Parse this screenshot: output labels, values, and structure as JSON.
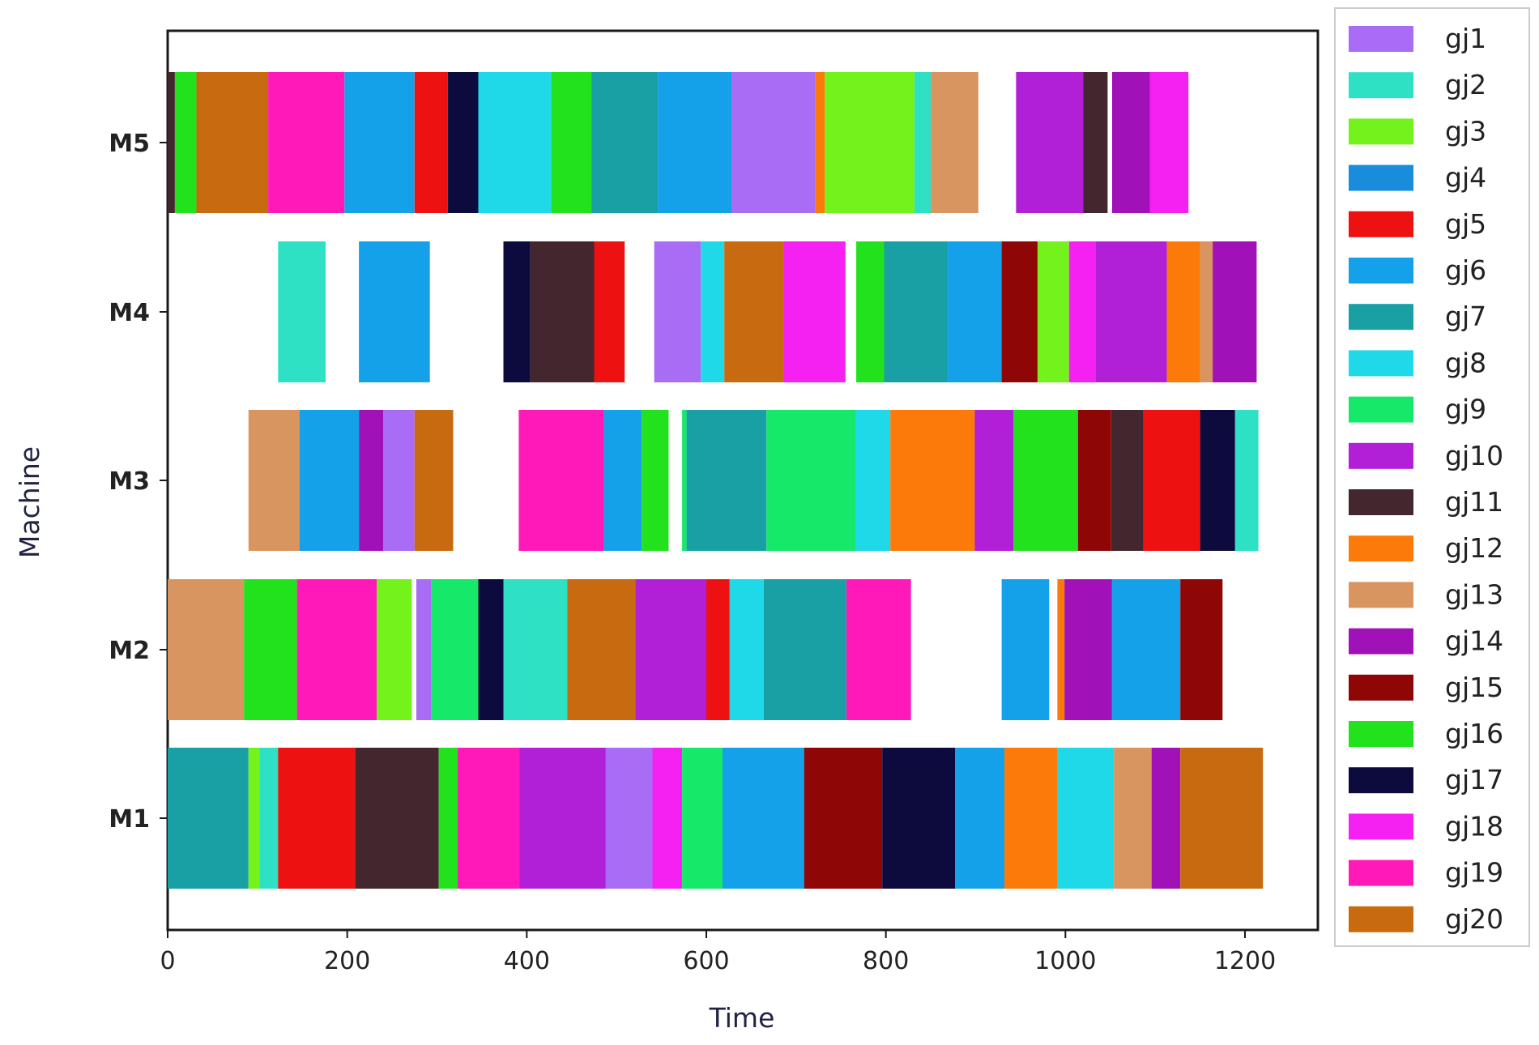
{
  "chart_data": {
    "type": "gantt",
    "xlabel": "Time",
    "ylabel": "Machine",
    "xlim": [
      0,
      1280
    ],
    "xticks": [
      0,
      200,
      400,
      600,
      800,
      1000,
      1200
    ],
    "machines": [
      "M1",
      "M2",
      "M3",
      "M4",
      "M5"
    ],
    "legend_position": "right",
    "jobs": [
      {
        "name": "gj1",
        "color": "#a96cf5"
      },
      {
        "name": "gj2",
        "color": "#2ee0c4"
      },
      {
        "name": "gj3",
        "color": "#73f21c"
      },
      {
        "name": "gj4",
        "color": "#1a8cdc"
      },
      {
        "name": "gj5",
        "color": "#ee1111"
      },
      {
        "name": "gj6",
        "color": "#15a1ea"
      },
      {
        "name": "gj7",
        "color": "#18a0a4"
      },
      {
        "name": "gj8",
        "color": "#1fd8e8"
      },
      {
        "name": "gj9",
        "color": "#16e86a"
      },
      {
        "name": "gj10",
        "color": "#b11fd6"
      },
      {
        "name": "gj11",
        "color": "#44262e"
      },
      {
        "name": "gj12",
        "color": "#fb7a0a"
      },
      {
        "name": "gj13",
        "color": "#d99560"
      },
      {
        "name": "gj14",
        "color": "#a012b8"
      },
      {
        "name": "gj15",
        "color": "#8e0606"
      },
      {
        "name": "gj16",
        "color": "#22e21e"
      },
      {
        "name": "gj17",
        "color": "#0d0a3e"
      },
      {
        "name": "gj18",
        "color": "#f520f2"
      },
      {
        "name": "gj19",
        "color": "#ff19b9"
      },
      {
        "name": "gj20",
        "color": "#c86a10"
      }
    ],
    "tasks": {
      "M5": [
        {
          "job": "gj11",
          "start": 0,
          "end": 8
        },
        {
          "job": "gj16",
          "start": 8,
          "end": 32
        },
        {
          "job": "gj20",
          "start": 32,
          "end": 112
        },
        {
          "job": "gj19",
          "start": 112,
          "end": 197
        },
        {
          "job": "gj6",
          "start": 197,
          "end": 275
        },
        {
          "job": "gj5",
          "start": 275,
          "end": 312
        },
        {
          "job": "gj17",
          "start": 312,
          "end": 346
        },
        {
          "job": "gj8",
          "start": 346,
          "end": 427
        },
        {
          "job": "gj16",
          "start": 427,
          "end": 472
        },
        {
          "job": "gj7",
          "start": 472,
          "end": 546
        },
        {
          "job": "gj6",
          "start": 546,
          "end": 628
        },
        {
          "job": "gj1",
          "start": 628,
          "end": 721
        },
        {
          "job": "gj12",
          "start": 721,
          "end": 732
        },
        {
          "job": "gj3",
          "start": 732,
          "end": 832
        },
        {
          "job": "gj2",
          "start": 832,
          "end": 850
        },
        {
          "job": "gj13",
          "start": 850,
          "end": 903
        },
        {
          "job": "gj10",
          "start": 945,
          "end": 1020
        },
        {
          "job": "gj11",
          "start": 1020,
          "end": 1047
        },
        {
          "job": "gj14",
          "start": 1052,
          "end": 1094
        },
        {
          "job": "gj18",
          "start": 1094,
          "end": 1137
        }
      ],
      "M4": [
        {
          "job": "gj2",
          "start": 123,
          "end": 176
        },
        {
          "job": "gj6",
          "start": 213,
          "end": 292
        },
        {
          "job": "gj17",
          "start": 374,
          "end": 404
        },
        {
          "job": "gj11",
          "start": 404,
          "end": 475
        },
        {
          "job": "gj5",
          "start": 475,
          "end": 509
        },
        {
          "job": "gj1",
          "start": 542,
          "end": 594
        },
        {
          "job": "gj8",
          "start": 594,
          "end": 620
        },
        {
          "job": "gj20",
          "start": 620,
          "end": 686
        },
        {
          "job": "gj18",
          "start": 686,
          "end": 755
        },
        {
          "job": "gj16",
          "start": 767,
          "end": 798
        },
        {
          "job": "gj7",
          "start": 798,
          "end": 869
        },
        {
          "job": "gj6",
          "start": 869,
          "end": 929
        },
        {
          "job": "gj15",
          "start": 929,
          "end": 969
        },
        {
          "job": "gj3",
          "start": 969,
          "end": 1004
        },
        {
          "job": "gj18",
          "start": 1004,
          "end": 1034
        },
        {
          "job": "gj10",
          "start": 1034,
          "end": 1113
        },
        {
          "job": "gj12",
          "start": 1113,
          "end": 1150
        },
        {
          "job": "gj13",
          "start": 1150,
          "end": 1164
        },
        {
          "job": "gj14",
          "start": 1164,
          "end": 1213
        }
      ],
      "M3": [
        {
          "job": "gj13",
          "start": 90,
          "end": 147
        },
        {
          "job": "gj6",
          "start": 147,
          "end": 213
        },
        {
          "job": "gj14",
          "start": 213,
          "end": 240
        },
        {
          "job": "gj1",
          "start": 240,
          "end": 275
        },
        {
          "job": "gj20",
          "start": 275,
          "end": 318
        },
        {
          "job": "gj19",
          "start": 391,
          "end": 486
        },
        {
          "job": "gj6",
          "start": 486,
          "end": 528
        },
        {
          "job": "gj16",
          "start": 528,
          "end": 558
        },
        {
          "job": "gj9",
          "start": 573,
          "end": 578
        },
        {
          "job": "gj7",
          "start": 578,
          "end": 667
        },
        {
          "job": "gj9",
          "start": 667,
          "end": 766
        },
        {
          "job": "gj8",
          "start": 766,
          "end": 805
        },
        {
          "job": "gj12",
          "start": 805,
          "end": 899
        },
        {
          "job": "gj10",
          "start": 899,
          "end": 942
        },
        {
          "job": "gj16",
          "start": 942,
          "end": 1014
        },
        {
          "job": "gj15",
          "start": 1014,
          "end": 1051
        },
        {
          "job": "gj11",
          "start": 1051,
          "end": 1087
        },
        {
          "job": "gj5",
          "start": 1087,
          "end": 1150
        },
        {
          "job": "gj17",
          "start": 1150,
          "end": 1189
        },
        {
          "job": "gj2",
          "start": 1189,
          "end": 1215
        }
      ],
      "M2": [
        {
          "job": "gj13",
          "start": 0,
          "end": 85
        },
        {
          "job": "gj16",
          "start": 85,
          "end": 144
        },
        {
          "job": "gj19",
          "start": 144,
          "end": 233
        },
        {
          "job": "gj3",
          "start": 233,
          "end": 272
        },
        {
          "job": "gj1",
          "start": 277,
          "end": 294
        },
        {
          "job": "gj9",
          "start": 294,
          "end": 346
        },
        {
          "job": "gj17",
          "start": 346,
          "end": 374
        },
        {
          "job": "gj2",
          "start": 374,
          "end": 445
        },
        {
          "job": "gj20",
          "start": 445,
          "end": 521
        },
        {
          "job": "gj10",
          "start": 521,
          "end": 600
        },
        {
          "job": "gj5",
          "start": 600,
          "end": 626
        },
        {
          "job": "gj8",
          "start": 626,
          "end": 664
        },
        {
          "job": "gj7",
          "start": 664,
          "end": 756
        },
        {
          "job": "gj19",
          "start": 756,
          "end": 828
        },
        {
          "job": "gj6",
          "start": 929,
          "end": 982
        },
        {
          "job": "gj12",
          "start": 991,
          "end": 999
        },
        {
          "job": "gj14",
          "start": 999,
          "end": 1052
        },
        {
          "job": "gj6",
          "start": 1052,
          "end": 1128
        },
        {
          "job": "gj15",
          "start": 1128,
          "end": 1175
        }
      ],
      "M1": [
        {
          "job": "gj7",
          "start": 0,
          "end": 90
        },
        {
          "job": "gj3",
          "start": 90,
          "end": 102
        },
        {
          "job": "gj2",
          "start": 102,
          "end": 123
        },
        {
          "job": "gj5",
          "start": 123,
          "end": 209
        },
        {
          "job": "gj11",
          "start": 209,
          "end": 302
        },
        {
          "job": "gj16",
          "start": 302,
          "end": 323
        },
        {
          "job": "gj19",
          "start": 323,
          "end": 392
        },
        {
          "job": "gj10",
          "start": 392,
          "end": 488
        },
        {
          "job": "gj1",
          "start": 488,
          "end": 540
        },
        {
          "job": "gj18",
          "start": 540,
          "end": 573
        },
        {
          "job": "gj9",
          "start": 573,
          "end": 618
        },
        {
          "job": "gj6",
          "start": 618,
          "end": 709
        },
        {
          "job": "gj15",
          "start": 709,
          "end": 796
        },
        {
          "job": "gj17",
          "start": 796,
          "end": 877
        },
        {
          "job": "gj6",
          "start": 877,
          "end": 932
        },
        {
          "job": "gj12",
          "start": 932,
          "end": 991
        },
        {
          "job": "gj8",
          "start": 991,
          "end": 1054
        },
        {
          "job": "gj13",
          "start": 1054,
          "end": 1096
        },
        {
          "job": "gj14",
          "start": 1096,
          "end": 1128
        },
        {
          "job": "gj20",
          "start": 1128,
          "end": 1220
        }
      ]
    }
  }
}
